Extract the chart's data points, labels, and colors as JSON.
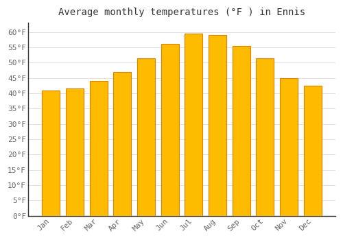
{
  "title": "Average monthly temperatures (°F ) in Ennis",
  "months": [
    "Jan",
    "Feb",
    "Mar",
    "Apr",
    "May",
    "Jun",
    "Jul",
    "Aug",
    "Sep",
    "Oct",
    "Nov",
    "Dec"
  ],
  "values": [
    41,
    41.5,
    44,
    47,
    51.5,
    56,
    59.5,
    59,
    55.5,
    51.5,
    45,
    42.5
  ],
  "bar_color_face": "#FFBB00",
  "bar_color_edge": "#E08000",
  "background_color": "#FFFFFF",
  "plot_bg_color": "#FFFFFF",
  "grid_color": "#DDDDDD",
  "title_fontsize": 10,
  "tick_fontsize": 8,
  "ylim": [
    0,
    63
  ],
  "yticks": [
    0,
    5,
    10,
    15,
    20,
    25,
    30,
    35,
    40,
    45,
    50,
    55,
    60
  ]
}
